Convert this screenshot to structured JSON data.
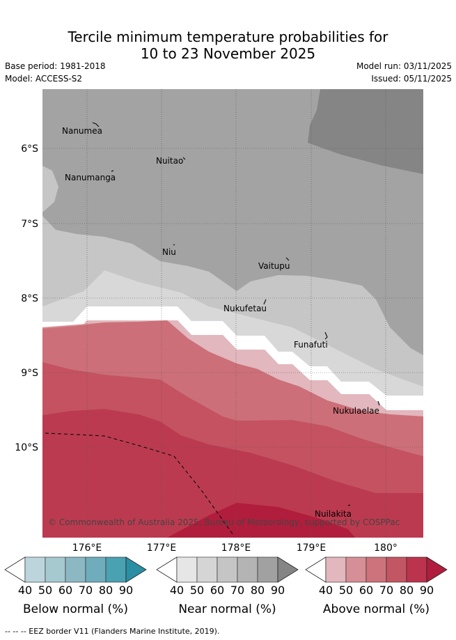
{
  "title": {
    "line1": "Tercile minimum temperature probabilities for",
    "line2": "10 to 23 November 2025"
  },
  "meta": {
    "base_period": "Base period: 1981-2018",
    "model": "Model: ACCESS-S2",
    "model_run": "Model run: 03/11/2025",
    "issued": "Issued: 05/11/2025"
  },
  "map": {
    "lon_labels": [
      "176°E",
      "177°E",
      "178°E",
      "179°E",
      "180°"
    ],
    "lat_labels": [
      "6°S",
      "7°S",
      "8°S",
      "9°S",
      "10°S"
    ],
    "places": [
      "Nanumea",
      "Nuitao",
      "Nanumanga",
      "Niu",
      "Vaitupu",
      "Nukufetau",
      "Funafuti",
      "Nukulaelae",
      "Nuilakita"
    ],
    "copyright": "© Commonwealth of Australia 2025, Bureau of Meteorology, supported by COSPPac"
  },
  "colorbars": [
    {
      "name": "below",
      "title": "Below normal (%)",
      "ticks": [
        "40",
        "50",
        "60",
        "70",
        "80",
        "90"
      ],
      "colors": [
        "#bcd5dc",
        "#a6c8cf",
        "#8cb8c4",
        "#6fadbd",
        "#4aa1b2",
        "#2a8fa3"
      ]
    },
    {
      "name": "near",
      "title": "Near normal (%)",
      "ticks": [
        "40",
        "50",
        "60",
        "70",
        "80",
        "90"
      ],
      "colors": [
        "#e6e6e6",
        "#d5d5d5",
        "#c5c5c5",
        "#b4b4b4",
        "#a1a1a1",
        "#858585"
      ]
    },
    {
      "name": "above",
      "title": "Above normal (%)",
      "ticks": [
        "40",
        "50",
        "60",
        "70",
        "80",
        "90"
      ],
      "colors": [
        "#e2b7bd",
        "#d68f96",
        "#cd737b",
        "#c35663",
        "#bb334c",
        "#b11d3c"
      ]
    }
  ],
  "footer": "--  --  -- EEZ border V11 (Flanders Marine Institute, 2019).",
  "colors": {
    "near_40": "#d8d8d8",
    "near_50": "#c6c6c6",
    "near_60": "#a3a3a3",
    "near_70": "#858585",
    "above_40": "#d68f96",
    "above_50": "#cd6f78",
    "above_60": "#c55260",
    "above_70": "#bc3a4f",
    "above_80": "#b11d3c"
  }
}
